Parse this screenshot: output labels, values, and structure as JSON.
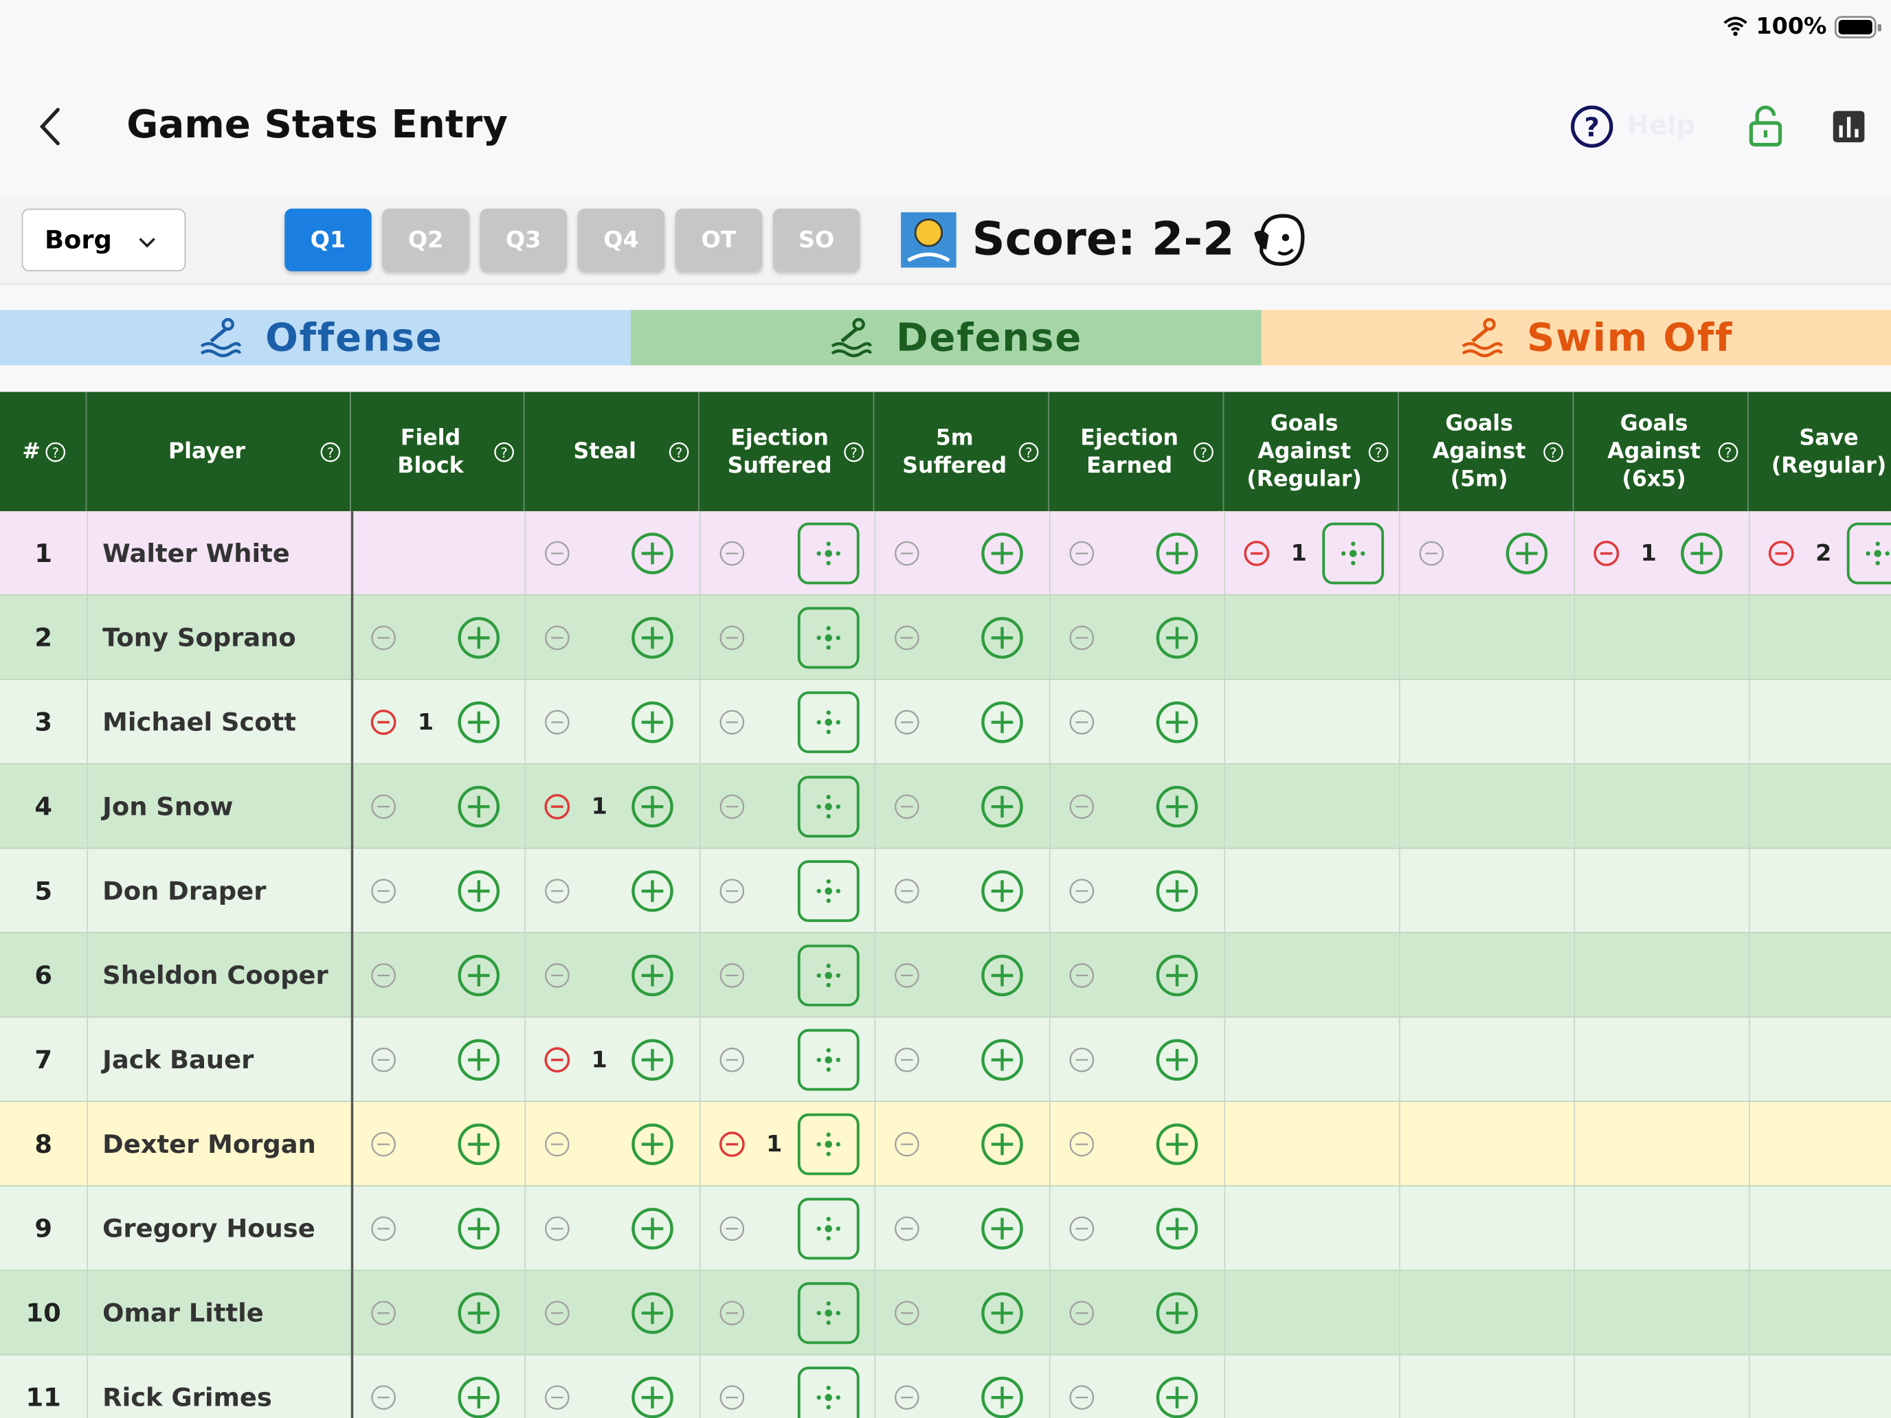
{
  "status_bar": {
    "battery": "100%"
  },
  "header": {
    "title": "Game Stats Entry",
    "help": "Help"
  },
  "toolbar": {
    "team": "Borg",
    "periods": [
      "Q1",
      "Q2",
      "Q3",
      "Q4",
      "OT",
      "SO"
    ],
    "active_period": "Q1",
    "score": "Score: 2-2"
  },
  "tabs": [
    {
      "label": "Offense",
      "color": "#1b5fa8",
      "background": "#bddcf6"
    },
    {
      "label": "Defense",
      "color": "#1b5e20",
      "background": "#a6d6a8"
    },
    {
      "label": "Swim Off",
      "color": "#e2560e",
      "background": "#ffddae"
    }
  ],
  "table": {
    "columns": [
      {
        "label": [
          "#"
        ]
      },
      {
        "label": [
          "Player"
        ]
      },
      {
        "label": [
          "Field",
          "Block"
        ],
        "button": "plus"
      },
      {
        "label": [
          "Steal"
        ],
        "button": "plus"
      },
      {
        "label": [
          "Ejection",
          "Suffered"
        ],
        "button": "locate"
      },
      {
        "label": [
          "5m",
          "Suffered"
        ],
        "button": "plus"
      },
      {
        "label": [
          "Ejection",
          "Earned"
        ],
        "button": "plus"
      },
      {
        "label": [
          "Goals",
          "Against",
          "(Regular)"
        ],
        "button": "locate"
      },
      {
        "label": [
          "Goals",
          "Against",
          "(5m)"
        ],
        "button": "plus"
      },
      {
        "label": [
          "Goals",
          "Against",
          "(6x5)"
        ],
        "button": "plus"
      },
      {
        "label": [
          "Save",
          "(Regular)"
        ],
        "button": "locate"
      }
    ],
    "rows": [
      {
        "number": "1",
        "player": "Walter White",
        "color": "#f4e4f5",
        "cells": [
          null,
          {},
          {},
          {},
          {},
          {
            "count": 1
          },
          {},
          {
            "count": 1
          },
          {
            "count": 2
          }
        ]
      },
      {
        "number": "2",
        "player": "Tony Soprano",
        "color": "#cfe9cf",
        "cells": [
          {},
          {},
          {},
          {},
          {},
          null,
          null,
          null,
          null
        ]
      },
      {
        "number": "3",
        "player": "Michael Scott",
        "color": "#e8f5e8",
        "cells": [
          {
            "count": 1
          },
          {},
          {},
          {},
          {},
          null,
          null,
          null,
          null
        ]
      },
      {
        "number": "4",
        "player": "Jon Snow",
        "color": "#cfe9cf",
        "cells": [
          {},
          {
            "count": 1
          },
          {},
          {},
          {},
          null,
          null,
          null,
          null
        ]
      },
      {
        "number": "5",
        "player": "Don Draper",
        "color": "#e8f5e8",
        "cells": [
          {},
          {},
          {},
          {},
          {},
          null,
          null,
          null,
          null
        ]
      },
      {
        "number": "6",
        "player": "Sheldon Cooper",
        "color": "#cfe9cf",
        "cells": [
          {},
          {},
          {},
          {},
          {},
          null,
          null,
          null,
          null
        ]
      },
      {
        "number": "7",
        "player": "Jack Bauer",
        "color": "#e8f5e8",
        "cells": [
          {},
          {
            "count": 1
          },
          {},
          {},
          {},
          null,
          null,
          null,
          null
        ]
      },
      {
        "number": "8",
        "player": "Dexter Morgan",
        "color": "#fff8cc",
        "cells": [
          {},
          {},
          {
            "count": 1
          },
          {},
          {},
          null,
          null,
          null,
          null
        ]
      },
      {
        "number": "9",
        "player": "Gregory House",
        "color": "#e8f5e8",
        "cells": [
          {},
          {},
          {},
          {},
          {},
          null,
          null,
          null,
          null
        ]
      },
      {
        "number": "10",
        "player": "Omar Little",
        "color": "#cfe9cf",
        "cells": [
          {},
          {},
          {},
          {},
          {},
          null,
          null,
          null,
          null
        ]
      },
      {
        "number": "11",
        "player": "Rick Grimes",
        "color": "#e8f5e8",
        "cells": [
          {},
          {},
          {},
          {},
          {},
          null,
          null,
          null,
          null
        ]
      }
    ]
  }
}
